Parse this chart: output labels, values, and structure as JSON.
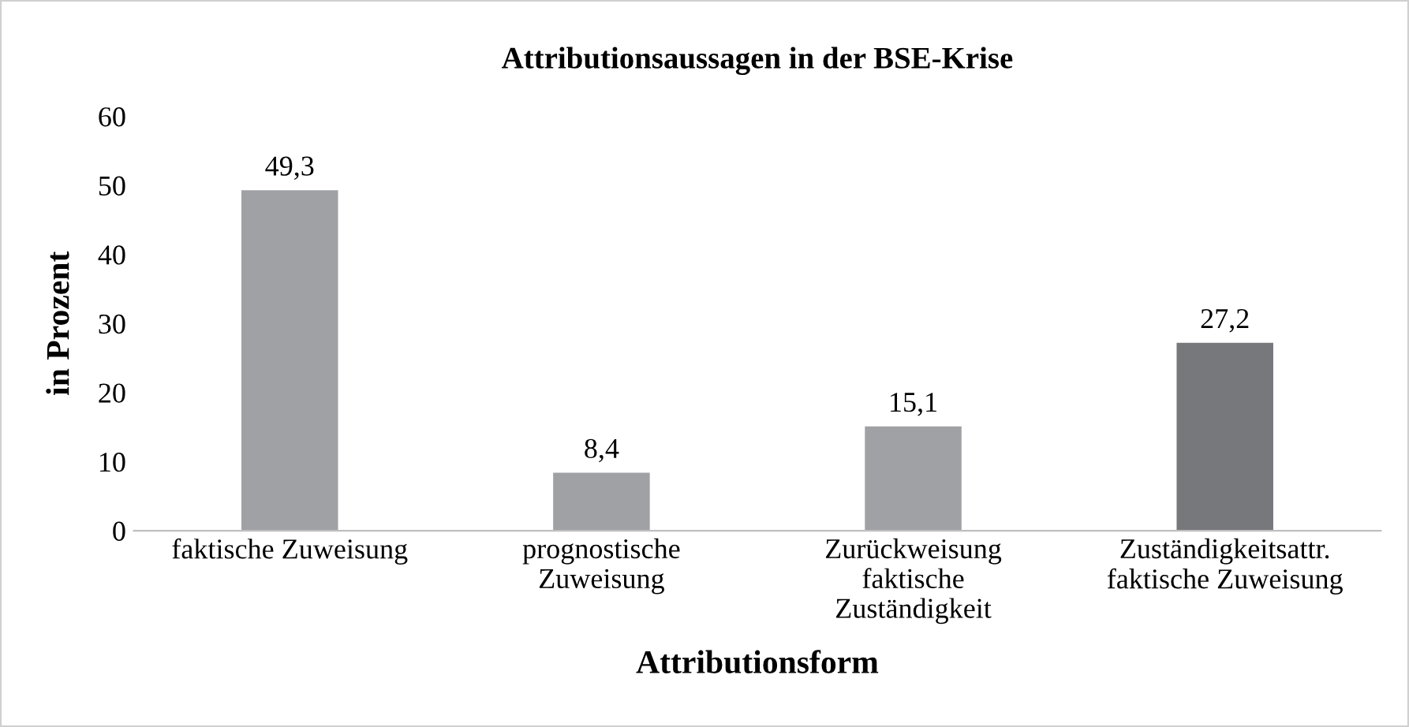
{
  "chart_data": {
    "type": "bar",
    "title": "Attributionsaussagen in der BSE-Krise",
    "xlabel": "Attributionsform",
    "ylabel": "in Prozent",
    "categories": [
      "faktische Zuweisung",
      "prognostische\nZuweisung",
      "Zurückweisung\nfaktische\nZuständigkeit",
      "Zuständigkeitsattr.\nfaktische Zuweisung"
    ],
    "values": [
      49.3,
      8.4,
      15.1,
      27.2
    ],
    "colors": [
      "#a0a1a5",
      "#a0a1a5",
      "#a0a1a5",
      "#77787c"
    ],
    "value_labels": [
      "49,3",
      "8,4",
      "15,1",
      "27,2"
    ],
    "ylim": [
      0,
      60
    ],
    "yticks": [
      0,
      10,
      20,
      30,
      40,
      50,
      60
    ],
    "grid": false
  }
}
